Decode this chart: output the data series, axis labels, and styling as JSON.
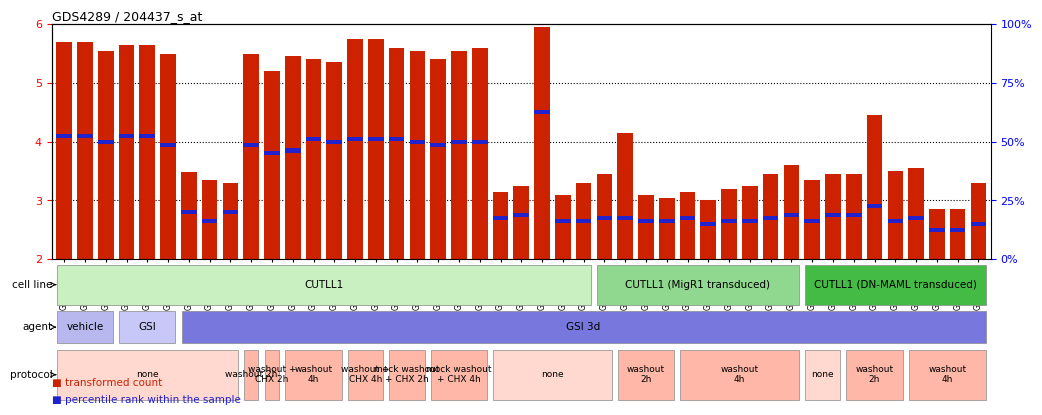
{
  "title": "GDS4289 / 204437_s_at",
  "ylim": [
    2,
    6
  ],
  "yticks": [
    2,
    3,
    4,
    5,
    6
  ],
  "right_yticks": [
    0,
    25,
    50,
    75,
    100
  ],
  "right_ylim": [
    0,
    100
  ],
  "bar_color": "#cc2200",
  "blue_color": "#2222cc",
  "samples": [
    "GSM731500",
    "GSM731501",
    "GSM731502",
    "GSM731503",
    "GSM731504",
    "GSM731505",
    "GSM731518",
    "GSM731519",
    "GSM731520",
    "GSM731506",
    "GSM731507",
    "GSM731508",
    "GSM731509",
    "GSM731510",
    "GSM731511",
    "GSM731512",
    "GSM731513",
    "GSM731514",
    "GSM731515",
    "GSM731516",
    "GSM731517",
    "GSM731521",
    "GSM731522",
    "GSM731523",
    "GSM731524",
    "GSM731525",
    "GSM731526",
    "GSM731527",
    "GSM731528",
    "GSM731529",
    "GSM731531",
    "GSM731532",
    "GSM731533",
    "GSM731534",
    "GSM731535",
    "GSM731536",
    "GSM731537",
    "GSM731538",
    "GSM731539",
    "GSM731540",
    "GSM731541",
    "GSM731542",
    "GSM731543",
    "GSM731544",
    "GSM731545"
  ],
  "bar_heights": [
    5.7,
    5.7,
    5.55,
    5.65,
    5.65,
    5.5,
    3.48,
    3.35,
    3.3,
    5.5,
    5.2,
    5.45,
    5.4,
    5.35,
    5.75,
    5.75,
    5.6,
    5.55,
    5.4,
    5.55,
    5.6,
    3.15,
    3.25,
    5.95,
    3.1,
    3.3,
    3.45,
    4.15,
    3.1,
    3.05,
    3.15,
    3.0,
    3.2,
    3.25,
    3.45,
    3.6,
    3.35,
    3.45,
    3.45,
    4.45,
    3.5,
    3.55,
    2.85,
    2.85,
    3.3
  ],
  "blue_heights": [
    4.1,
    4.1,
    4.0,
    4.1,
    4.1,
    3.95,
    2.8,
    2.65,
    2.8,
    3.95,
    3.8,
    3.85,
    4.05,
    4.0,
    4.05,
    4.05,
    4.05,
    4.0,
    3.95,
    4.0,
    4.0,
    2.7,
    2.75,
    4.5,
    2.65,
    2.65,
    2.7,
    2.7,
    2.65,
    2.65,
    2.7,
    2.6,
    2.65,
    2.65,
    2.7,
    2.75,
    2.65,
    2.75,
    2.75,
    2.9,
    2.65,
    2.7,
    2.5,
    2.5,
    2.6
  ],
  "cell_line_groups": [
    {
      "label": "CUTLL1",
      "start": 0,
      "end": 26,
      "color": "#c8f0c0"
    },
    {
      "label": "CUTLL1 (MigR1 transduced)",
      "start": 26,
      "end": 36,
      "color": "#90d890"
    },
    {
      "label": "CUTLL1 (DN-MAML transduced)",
      "start": 36,
      "end": 45,
      "color": "#44bb44"
    }
  ],
  "agent_groups": [
    {
      "label": "vehicle",
      "start": 0,
      "end": 3,
      "color": "#b8b8ee"
    },
    {
      "label": "GSI",
      "start": 3,
      "end": 6,
      "color": "#c8c8f8"
    },
    {
      "label": "GSI 3d",
      "start": 6,
      "end": 45,
      "color": "#7777dd"
    }
  ],
  "protocol_groups": [
    {
      "label": "none",
      "start": 0,
      "end": 9,
      "color": "#ffd8d0"
    },
    {
      "label": "washout 2h",
      "start": 9,
      "end": 10,
      "color": "#ffb8a8"
    },
    {
      "label": "washout +\nCHX 2h",
      "start": 10,
      "end": 11,
      "color": "#ffb8a8"
    },
    {
      "label": "washout\n4h",
      "start": 11,
      "end": 14,
      "color": "#ffb8a8"
    },
    {
      "label": "washout +\nCHX 4h",
      "start": 14,
      "end": 16,
      "color": "#ffb8a8"
    },
    {
      "label": "mock washout\n+ CHX 2h",
      "start": 16,
      "end": 18,
      "color": "#ffb8a8"
    },
    {
      "label": "mock washout\n+ CHX 4h",
      "start": 18,
      "end": 21,
      "color": "#ffb8a8"
    },
    {
      "label": "none",
      "start": 21,
      "end": 27,
      "color": "#ffd8d0"
    },
    {
      "label": "washout\n2h",
      "start": 27,
      "end": 30,
      "color": "#ffb8a8"
    },
    {
      "label": "washout\n4h",
      "start": 30,
      "end": 36,
      "color": "#ffb8a8"
    },
    {
      "label": "none",
      "start": 36,
      "end": 38,
      "color": "#ffd8d0"
    },
    {
      "label": "washout\n2h",
      "start": 38,
      "end": 41,
      "color": "#ffb8a8"
    },
    {
      "label": "washout\n4h",
      "start": 41,
      "end": 45,
      "color": "#ffb8a8"
    }
  ]
}
